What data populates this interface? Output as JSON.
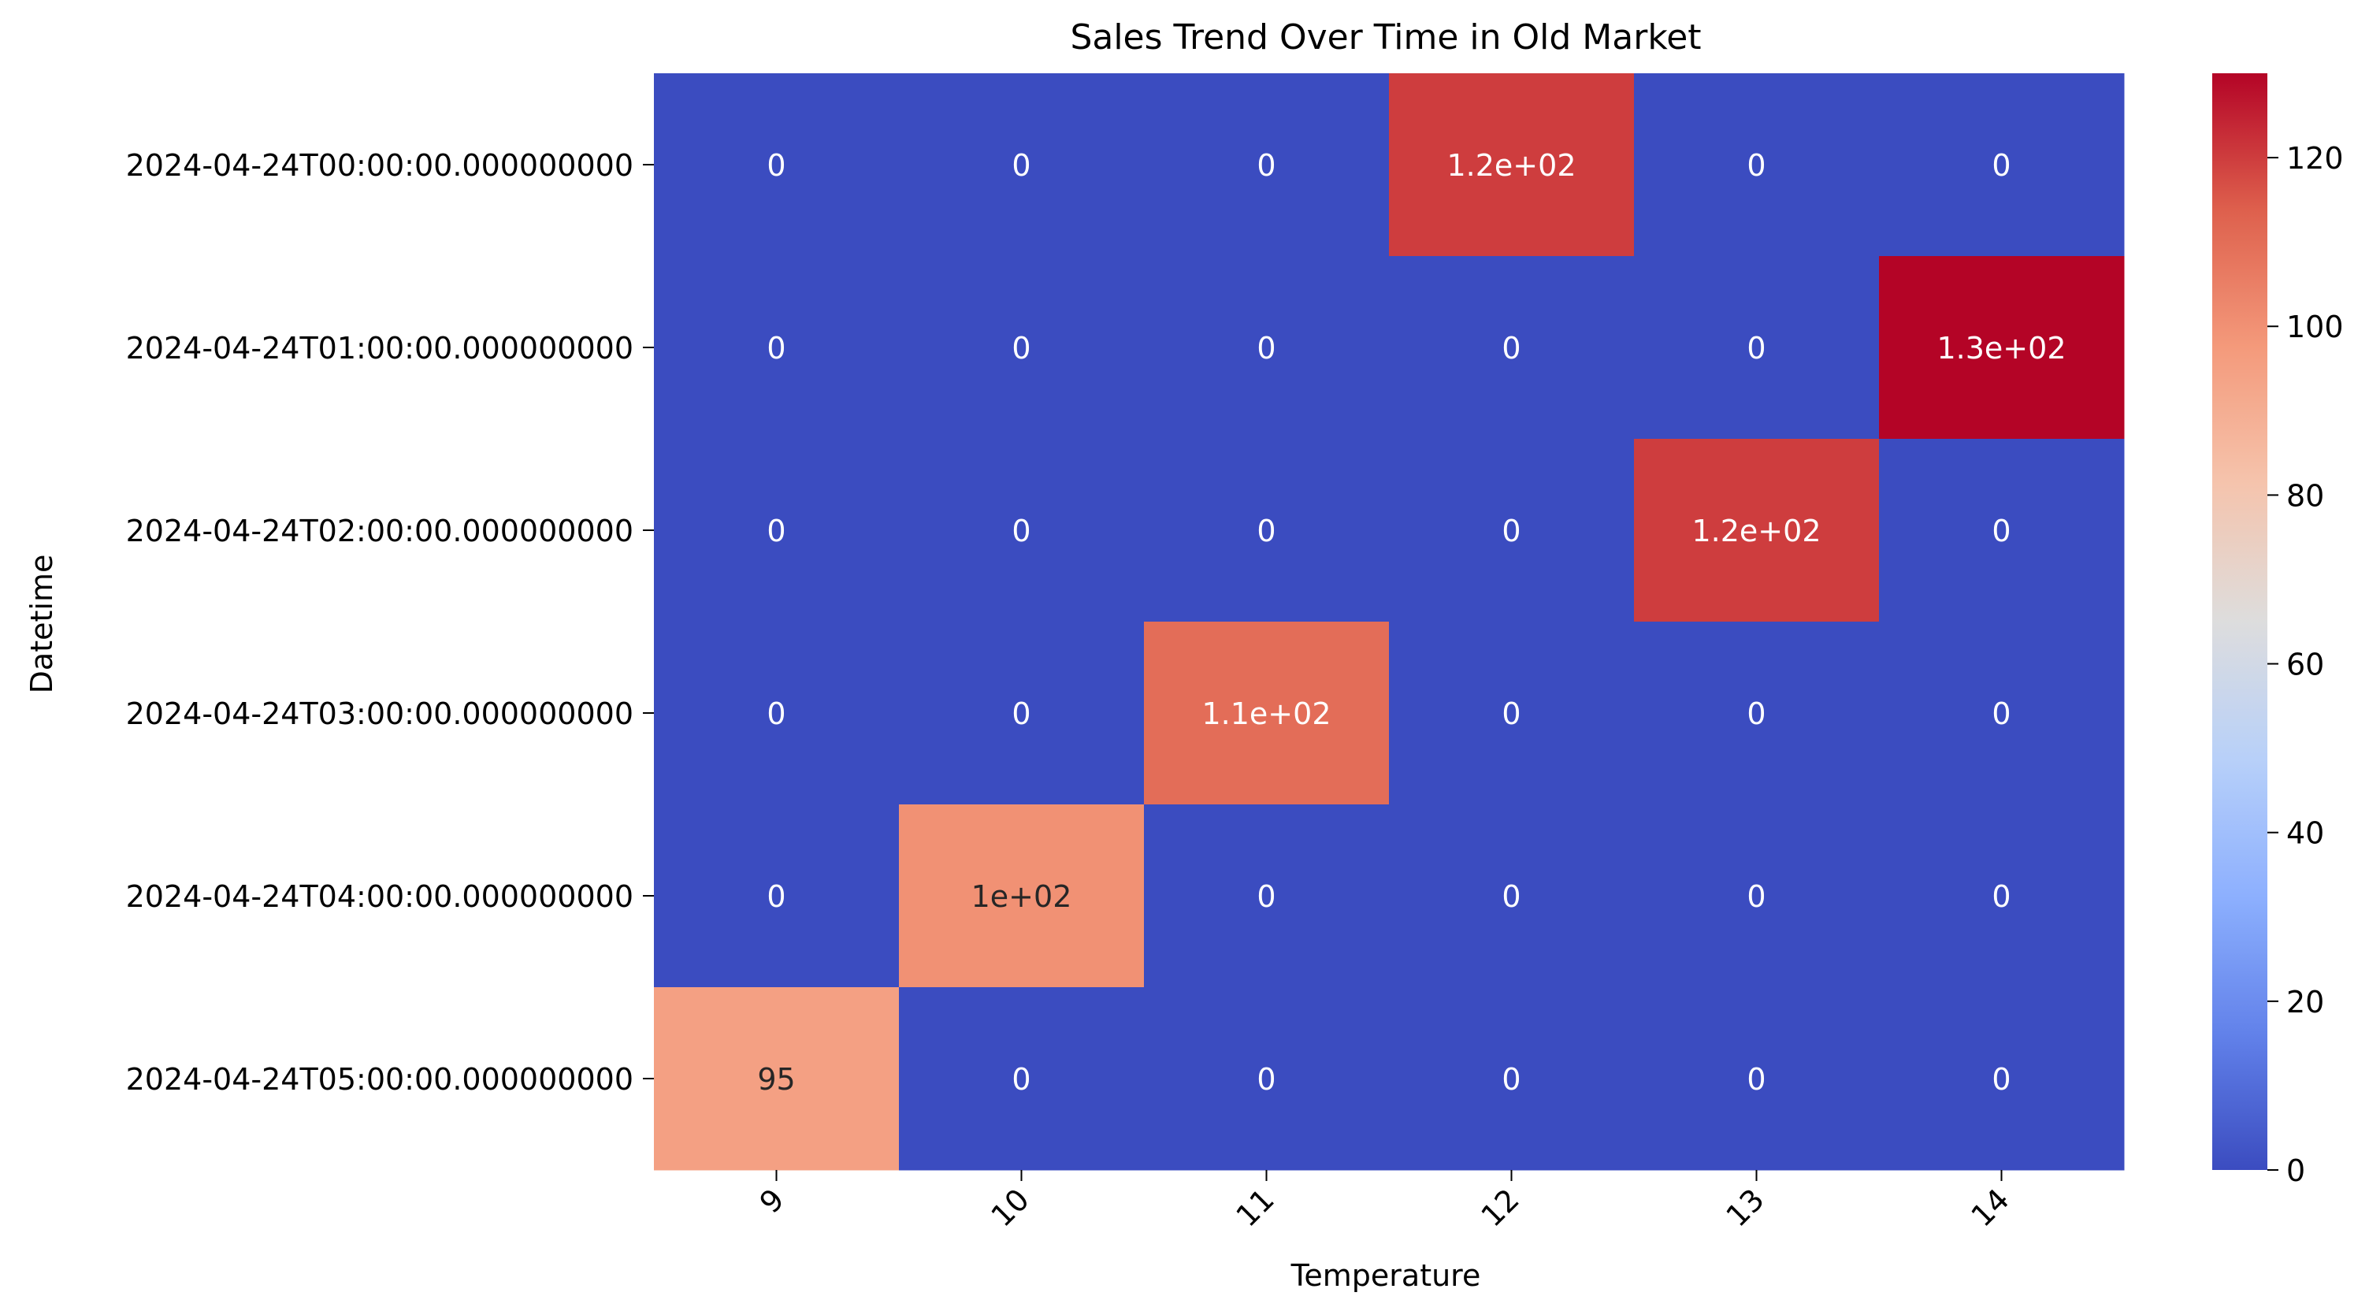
{
  "chart_data": {
    "type": "heatmap",
    "title": "Sales Trend Over Time in Old Market",
    "xlabel": "Temperature",
    "ylabel": "Datetime",
    "x_categories": [
      "9",
      "10",
      "11",
      "12",
      "13",
      "14"
    ],
    "y_categories": [
      "2024-04-24T00:00:00.000000000",
      "2024-04-24T01:00:00.000000000",
      "2024-04-24T02:00:00.000000000",
      "2024-04-24T03:00:00.000000000",
      "2024-04-24T04:00:00.000000000",
      "2024-04-24T05:00:00.000000000"
    ],
    "values": [
      [
        0,
        0,
        0,
        120,
        0,
        0
      ],
      [
        0,
        0,
        0,
        0,
        0,
        130
      ],
      [
        0,
        0,
        0,
        0,
        120,
        0
      ],
      [
        0,
        0,
        110,
        0,
        0,
        0
      ],
      [
        0,
        100,
        0,
        0,
        0,
        0
      ],
      [
        95,
        0,
        0,
        0,
        0,
        0
      ]
    ],
    "annotations": [
      [
        "0",
        "0",
        "0",
        "1.2e+02",
        "0",
        "0"
      ],
      [
        "0",
        "0",
        "0",
        "0",
        "0",
        "1.3e+02"
      ],
      [
        "0",
        "0",
        "0",
        "0",
        "1.2e+02",
        "0"
      ],
      [
        "0",
        "0",
        "1.1e+02",
        "0",
        "0",
        "0"
      ],
      [
        "0",
        "1e+02",
        "0",
        "0",
        "0",
        "0"
      ],
      [
        "95",
        "0",
        "0",
        "0",
        "0",
        "0"
      ]
    ],
    "colormap": "coolwarm",
    "colorbar": {
      "range": [
        0,
        130
      ],
      "ticks": [
        0,
        20,
        40,
        60,
        80,
        100,
        120
      ]
    },
    "x_tick_rotation": "45 degrees",
    "grid": false
  }
}
